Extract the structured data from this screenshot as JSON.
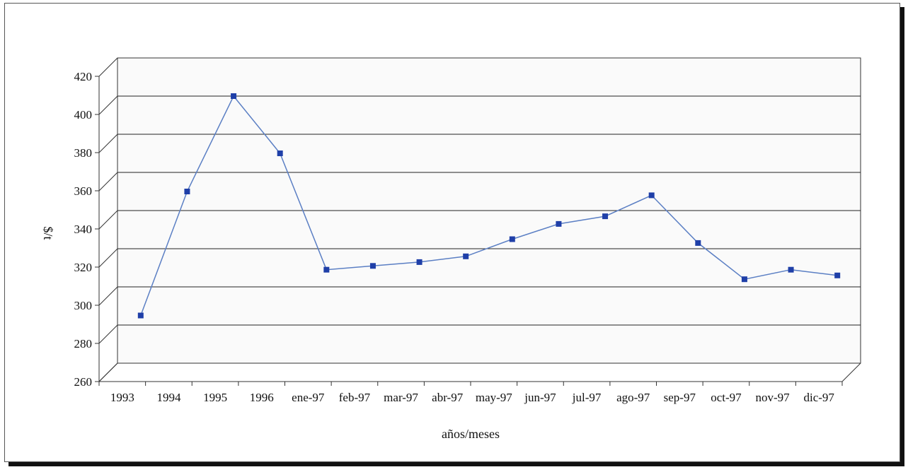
{
  "chart_data": {
    "type": "line",
    "title": "",
    "xlabel": "años/meses",
    "ylabel": "$/t",
    "categories": [
      "1993",
      "1994",
      "1995",
      "1996",
      "ene-97",
      "feb-97",
      "mar-97",
      "abr-97",
      "may-97",
      "jun-97",
      "jul-97",
      "ago-97",
      "sep-97",
      "oct-97",
      "nov-97",
      "dic-97"
    ],
    "series": [
      {
        "values": [
          285,
          350,
          400,
          370,
          309,
          311,
          313,
          316,
          325,
          333,
          337,
          348,
          323,
          304,
          309,
          306
        ]
      }
    ],
    "ylim": [
      260,
      420
    ],
    "yticks": [
      260,
      280,
      300,
      320,
      340,
      360,
      380,
      400,
      420
    ],
    "grid": true,
    "legend": "none",
    "three_d": true
  },
  "colors": {
    "series_line": "#5b7fc4",
    "marker": "#1f3fa8",
    "plot_background": "#fafafa",
    "gridline": "#222222"
  }
}
